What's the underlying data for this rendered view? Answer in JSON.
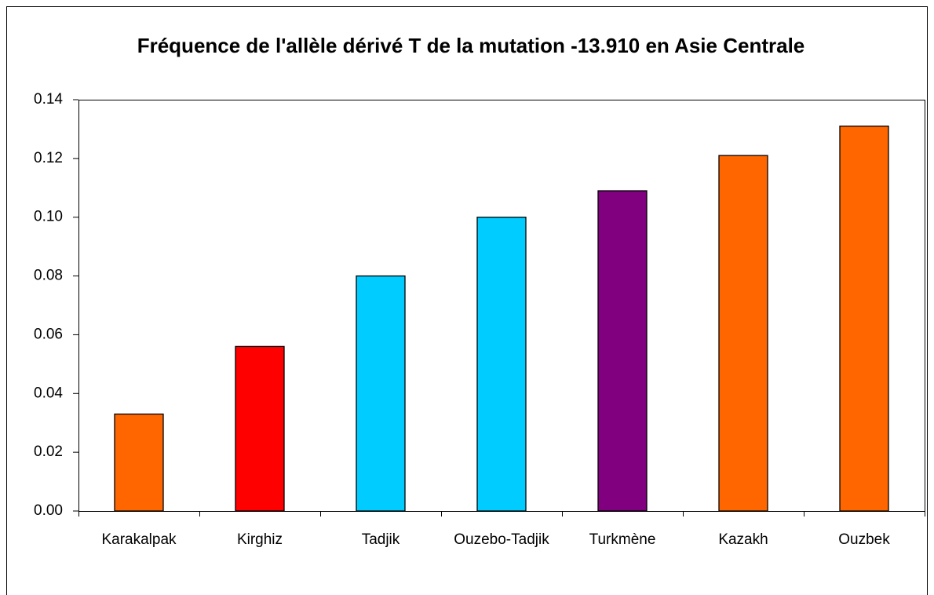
{
  "chart_data": {
    "type": "bar",
    "title": "Fréquence de l'allèle dérivé T de la mutation -13.910 en Asie Centrale",
    "categories": [
      "Karakalpak",
      "Kirghiz",
      "Tadjik",
      "Ouzebo-Tadjik",
      "Turkmène",
      "Kazakh",
      "Ouzbek"
    ],
    "values": [
      0.033,
      0.056,
      0.08,
      0.1,
      0.109,
      0.121,
      0.131
    ],
    "colors": [
      "#ff6600",
      "#ff0000",
      "#00ccff",
      "#00ccff",
      "#800080",
      "#ff6600",
      "#ff6600"
    ],
    "ylim": [
      0,
      0.14
    ],
    "yticks": [
      {
        "value": 0,
        "label": "0.00"
      },
      {
        "value": 0.02,
        "label": "0.02"
      },
      {
        "value": 0.04,
        "label": "0.04"
      },
      {
        "value": 0.06,
        "label": "0.06"
      },
      {
        "value": 0.08,
        "label": "0.08"
      },
      {
        "value": 0.1,
        "label": "0.10"
      },
      {
        "value": 0.12,
        "label": "0.12"
      },
      {
        "value": 0.14,
        "label": "0.14"
      }
    ],
    "grid": false
  }
}
